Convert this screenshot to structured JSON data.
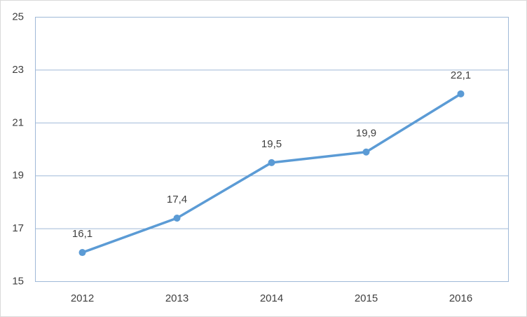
{
  "chart_data": {
    "type": "line",
    "categories": [
      "2012",
      "2013",
      "2014",
      "2015",
      "2016"
    ],
    "values": [
      16.1,
      17.4,
      19.5,
      19.9,
      22.1
    ],
    "value_labels": [
      "16,1",
      "17,4",
      "19,5",
      "19,9",
      "22,1"
    ],
    "color": "#5b9bd5",
    "ylim": [
      15,
      25
    ],
    "yticks": [
      15,
      17,
      19,
      21,
      23,
      25
    ],
    "grid": true
  }
}
